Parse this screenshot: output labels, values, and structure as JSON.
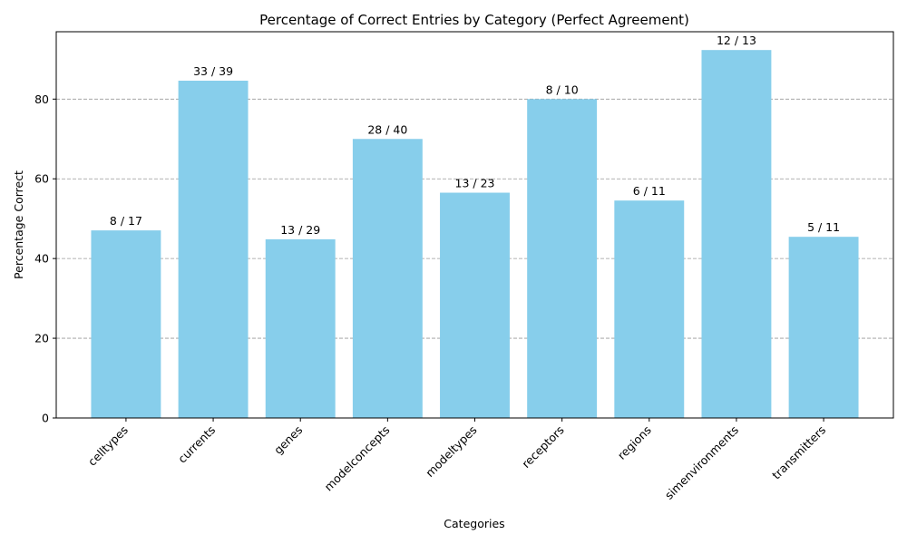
{
  "chart_data": {
    "type": "bar",
    "title": "Percentage of Correct Entries by Category (Perfect Agreement)",
    "xlabel": "Categories",
    "ylabel": "Percentage Correct",
    "categories": [
      "celltypes",
      "currents",
      "genes",
      "modelconcepts",
      "modeltypes",
      "receptors",
      "regions",
      "simenvironments",
      "transmitters"
    ],
    "values": [
      47.06,
      84.62,
      44.83,
      70.0,
      56.52,
      80.0,
      54.55,
      92.31,
      45.45
    ],
    "bar_labels": [
      "8 / 17",
      "33 / 39",
      "13 / 29",
      "28 / 40",
      "13 / 23",
      "8 / 10",
      "6 / 11",
      "12 / 13",
      "5 / 11"
    ],
    "yticks": [
      0,
      20,
      40,
      60,
      80
    ],
    "ylim": [
      0,
      96.9
    ],
    "grid": "y dashed",
    "bar_color": "#87CEEB"
  }
}
